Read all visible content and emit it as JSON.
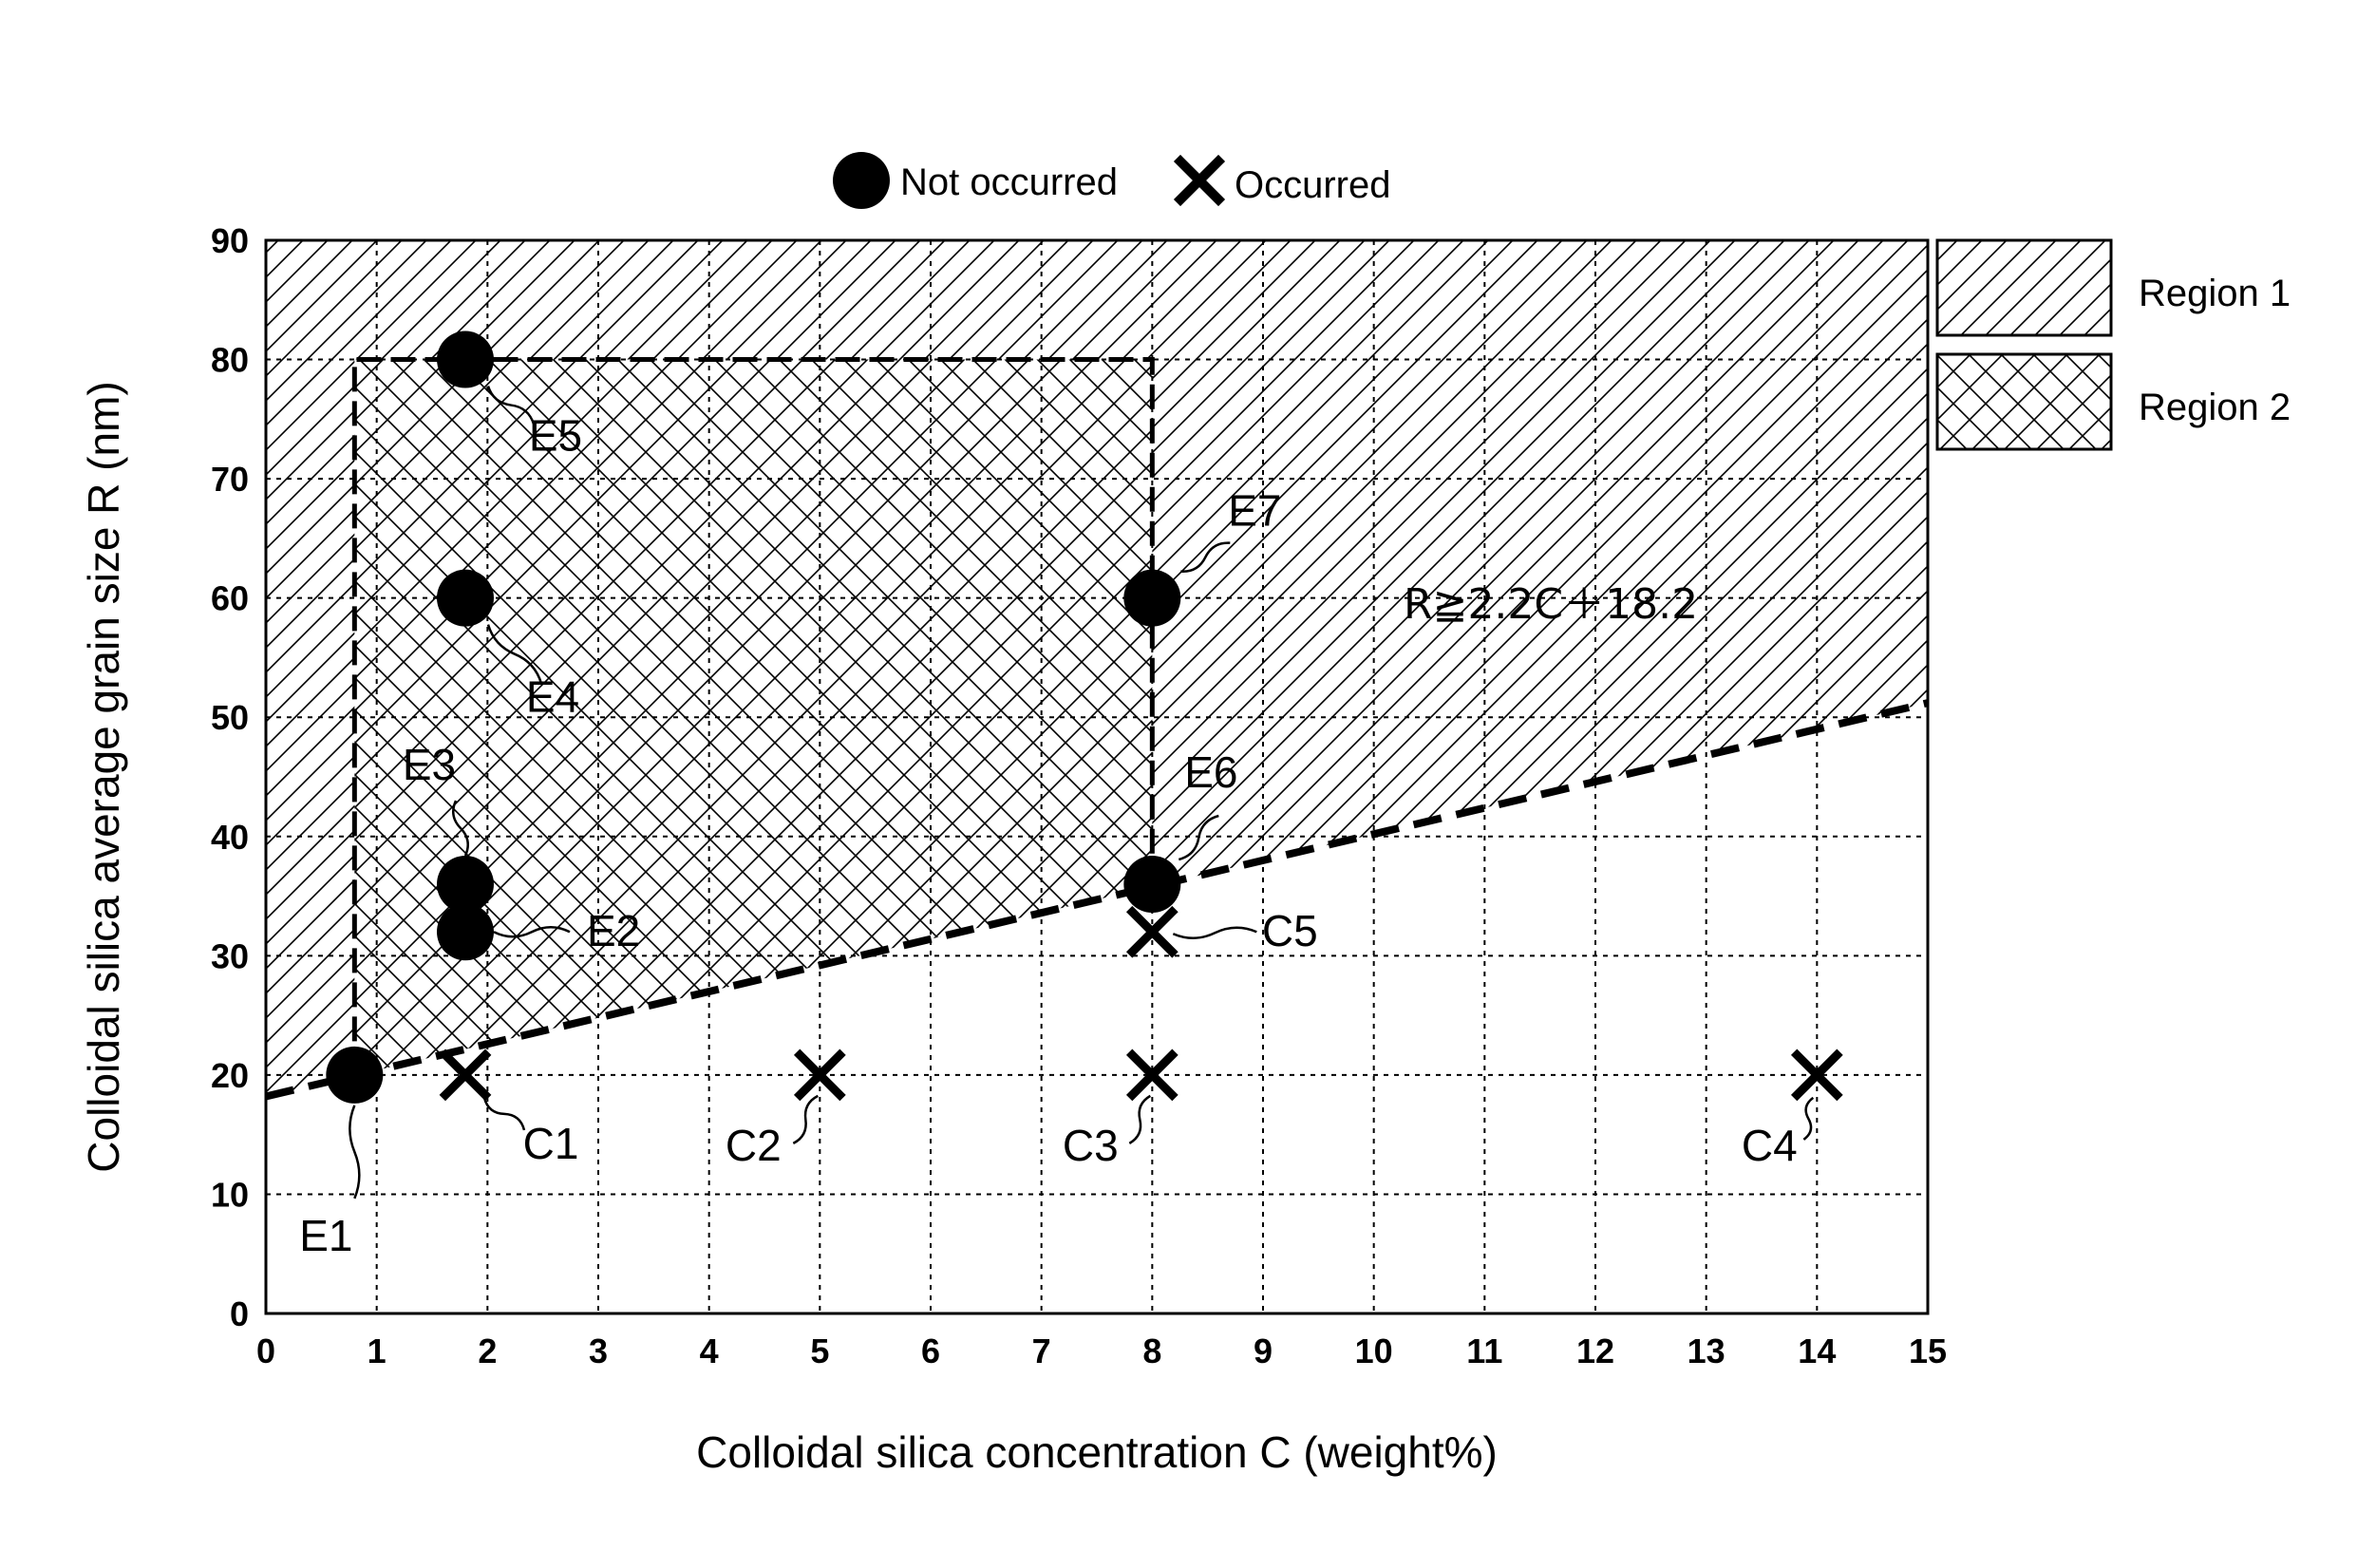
{
  "chart_data": {
    "type": "scatter",
    "xlabel": "Colloidal silica concentration C (weight%)",
    "ylabel": "Colloidal silica average grain size R (nm)",
    "xlim": [
      0,
      15
    ],
    "ylim": [
      0,
      90
    ],
    "x_ticks": [
      0,
      1,
      2,
      3,
      4,
      5,
      6,
      7,
      8,
      9,
      10,
      11,
      12,
      13,
      14,
      15
    ],
    "y_ticks": [
      0,
      10,
      20,
      30,
      40,
      50,
      60,
      70,
      80,
      90
    ],
    "grid": true,
    "legend": {
      "placement": "top-center",
      "entries": [
        {
          "symbol": "filled-circle",
          "label": "Not occurred"
        },
        {
          "symbol": "cross",
          "label": "Occurred"
        }
      ]
    },
    "series": [
      {
        "name": "Not occurred",
        "marker": "filled-circle",
        "points": [
          {
            "label": "E1",
            "x": 0.8,
            "y": 20
          },
          {
            "label": "E2",
            "x": 1.8,
            "y": 32
          },
          {
            "label": "E3",
            "x": 1.8,
            "y": 36
          },
          {
            "label": "E4",
            "x": 1.8,
            "y": 60
          },
          {
            "label": "E5",
            "x": 1.8,
            "y": 80
          },
          {
            "label": "E6",
            "x": 8,
            "y": 36
          },
          {
            "label": "E7",
            "x": 8,
            "y": 60
          }
        ]
      },
      {
        "name": "Occurred",
        "marker": "cross",
        "points": [
          {
            "label": "C1",
            "x": 1.8,
            "y": 20
          },
          {
            "label": "C2",
            "x": 5,
            "y": 20
          },
          {
            "label": "C3",
            "x": 8,
            "y": 20
          },
          {
            "label": "C4",
            "x": 14,
            "y": 20
          },
          {
            "label": "C5",
            "x": 8,
            "y": 32
          }
        ]
      }
    ],
    "boundary_line": {
      "equation": "R≧2.2C＋18.2",
      "slope": 2.2,
      "intercept": 18.2,
      "style": "dashed"
    },
    "regions": [
      {
        "name": "Region 1",
        "pattern": "diagonal-hatch",
        "rule": "R ≥ 2.2C + 18.2"
      },
      {
        "name": "Region 2",
        "pattern": "cross-hatch",
        "x_range": [
          0.8,
          8
        ],
        "y_max": 80
      }
    ]
  }
}
